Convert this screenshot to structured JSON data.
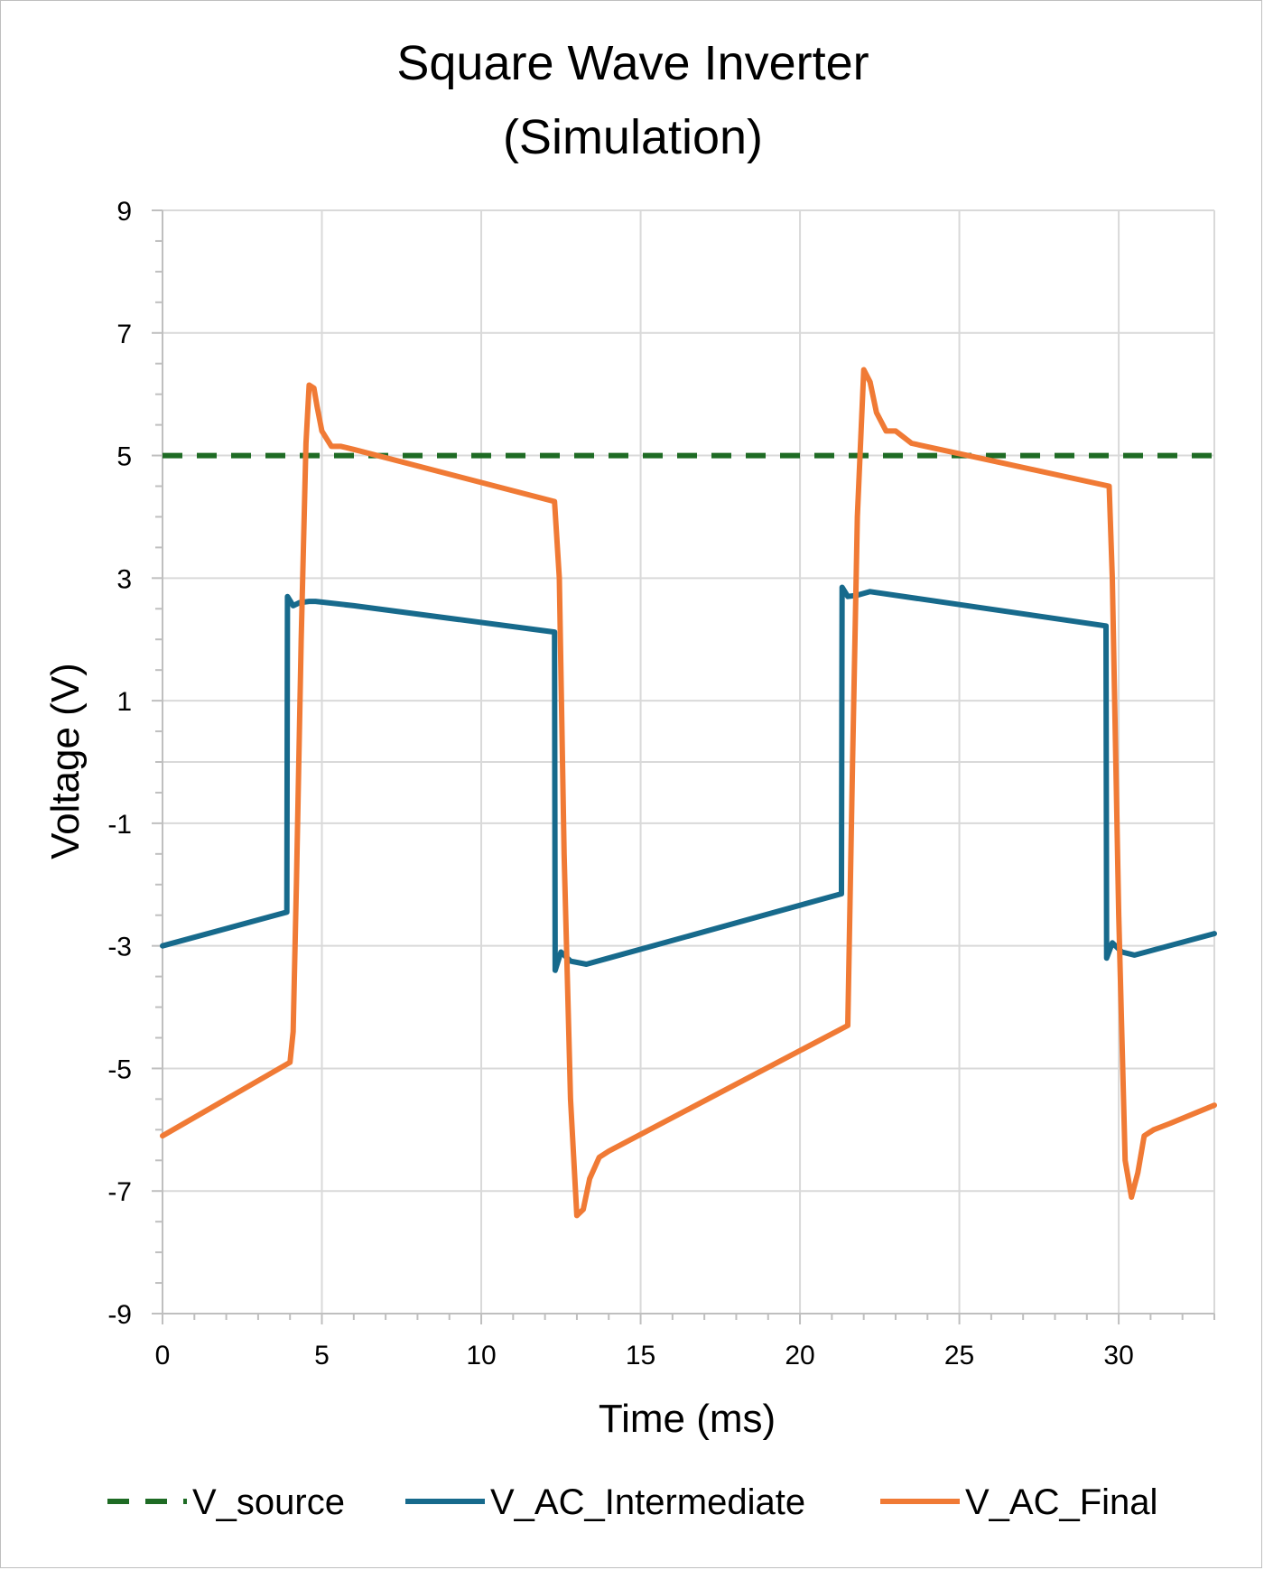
{
  "chart_data": {
    "type": "line",
    "title_lines": [
      "Square Wave Inverter",
      "(Simulation)"
    ],
    "xlabel": "Time (ms)",
    "ylabel": "Voltage (V)",
    "xlim": [
      0,
      33
    ],
    "ylim": [
      -9,
      9
    ],
    "x_ticks": [
      0,
      5,
      10,
      15,
      20,
      25,
      30
    ],
    "y_ticks": [
      -9,
      -7,
      -5,
      -3,
      -1,
      1,
      3,
      5,
      7,
      9
    ],
    "grid": true,
    "legend_position": "bottom",
    "series": [
      {
        "name": "V_source",
        "color": "#1e6b24",
        "dash": true,
        "x": [
          0,
          33
        ],
        "y": [
          5,
          5
        ]
      },
      {
        "name": "V_AC_Intermediate",
        "color": "#176a8c",
        "dash": false,
        "x": [
          0,
          3.9,
          3.92,
          4.1,
          4.3,
          4.6,
          4.8,
          6,
          12.3,
          12.32,
          12.5,
          12.8,
          13.3,
          14,
          21.3,
          21.32,
          21.5,
          21.8,
          22.2,
          29.6,
          29.62,
          29.8,
          30.1,
          30.5,
          33
        ],
        "y": [
          -3.0,
          -2.45,
          2.7,
          2.55,
          2.6,
          2.62,
          2.62,
          2.55,
          2.12,
          -3.4,
          -3.1,
          -3.25,
          -3.3,
          -3.2,
          -2.15,
          2.85,
          2.7,
          2.72,
          2.78,
          2.22,
          -3.2,
          -2.95,
          -3.1,
          -3.15,
          -2.8
        ]
      },
      {
        "name": "V_AC_Final",
        "color": "#f07a35",
        "dash": false,
        "x": [
          0,
          4.0,
          4.1,
          4.2,
          4.35,
          4.5,
          4.6,
          4.75,
          4.85,
          5.0,
          5.3,
          5.6,
          6.0,
          12.3,
          12.45,
          12.6,
          12.8,
          13.0,
          13.2,
          13.4,
          13.7,
          14.0,
          21.5,
          21.65,
          21.8,
          22.0,
          22.2,
          22.4,
          22.7,
          23.0,
          23.5,
          29.7,
          29.8,
          30.0,
          30.2,
          30.4,
          30.6,
          30.8,
          31.1,
          31.6,
          33
        ],
        "y": [
          -6.1,
          -4.9,
          -4.4,
          -2.0,
          2.0,
          5.2,
          6.15,
          6.1,
          5.8,
          5.4,
          5.15,
          5.15,
          5.1,
          4.25,
          3.0,
          -1.5,
          -5.5,
          -7.4,
          -7.3,
          -6.8,
          -6.45,
          -6.35,
          -4.3,
          0.0,
          4.0,
          6.4,
          6.2,
          5.7,
          5.4,
          5.4,
          5.2,
          4.5,
          3.0,
          -2.5,
          -6.5,
          -7.1,
          -6.7,
          -6.1,
          -6.0,
          -5.9,
          -5.6
        ]
      }
    ]
  }
}
